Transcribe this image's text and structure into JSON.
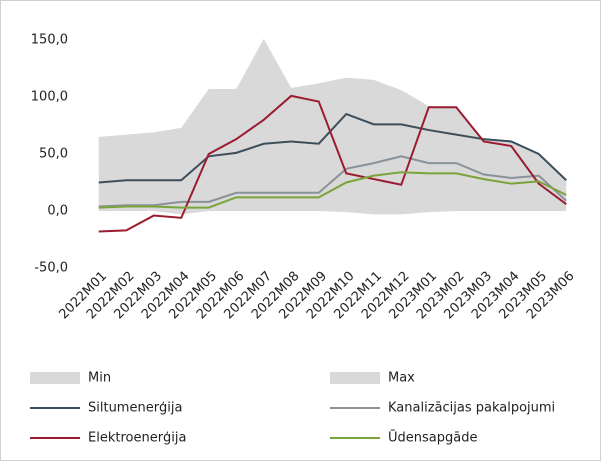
{
  "chart_data": {
    "type": "line",
    "categories": [
      "2022M01",
      "2022M02",
      "2022M03",
      "2022M04",
      "2022M05",
      "2022M06",
      "2022M07",
      "2022M08",
      "2022M09",
      "2022M10",
      "2022M11",
      "2022M12",
      "2023M01",
      "2023M02",
      "2023M03",
      "2023M04",
      "2023M05",
      "2023M06"
    ],
    "series": [
      {
        "name": "Min",
        "type": "area",
        "color": "#d9d9d9",
        "values": [
          0,
          0,
          0,
          -3,
          0,
          0,
          0,
          0,
          0,
          -1,
          -3,
          -3,
          -1,
          0,
          0,
          0,
          0,
          0
        ]
      },
      {
        "name": "Max",
        "type": "area",
        "color": "#d9d9d9",
        "values": [
          65,
          67,
          69,
          73,
          107,
          107,
          151,
          108,
          112,
          117,
          115,
          106,
          92,
          91,
          63,
          62,
          51,
          27
        ]
      },
      {
        "name": "Siltumenerģija",
        "type": "line",
        "color": "#3d4f5c",
        "values": [
          25,
          27,
          27,
          27,
          48,
          51,
          59,
          61,
          59,
          85,
          76,
          76,
          71,
          67,
          63,
          61,
          50,
          27
        ]
      },
      {
        "name": "Kanalizācijas pakalpojumi",
        "type": "line",
        "color": "#8a9299",
        "values": [
          4,
          5,
          5,
          8,
          8,
          16,
          16,
          16,
          16,
          37,
          42,
          48,
          42,
          42,
          32,
          29,
          31,
          9
        ]
      },
      {
        "name": "Elektroenerģija",
        "type": "line",
        "color": "#9b1c31",
        "values": [
          -18,
          -17,
          -4,
          -6,
          50,
          63,
          80,
          101,
          96,
          33,
          28,
          23,
          91,
          91,
          61,
          57,
          24,
          6
        ]
      },
      {
        "name": "Ūdensapgāde",
        "type": "line",
        "color": "#7aa43a",
        "values": [
          3,
          4,
          4,
          3,
          3,
          12,
          12,
          12,
          12,
          25,
          31,
          34,
          33,
          33,
          28,
          24,
          26,
          14
        ]
      }
    ],
    "ylim": [
      -50,
      150
    ],
    "yticks": [
      {
        "value": -50,
        "label": "-50,0"
      },
      {
        "value": 0,
        "label": "0,0"
      },
      {
        "value": 50,
        "label": "50,0"
      },
      {
        "value": 100,
        "label": "100,0"
      },
      {
        "value": 150,
        "label": "150,0"
      }
    ],
    "grid": false
  }
}
